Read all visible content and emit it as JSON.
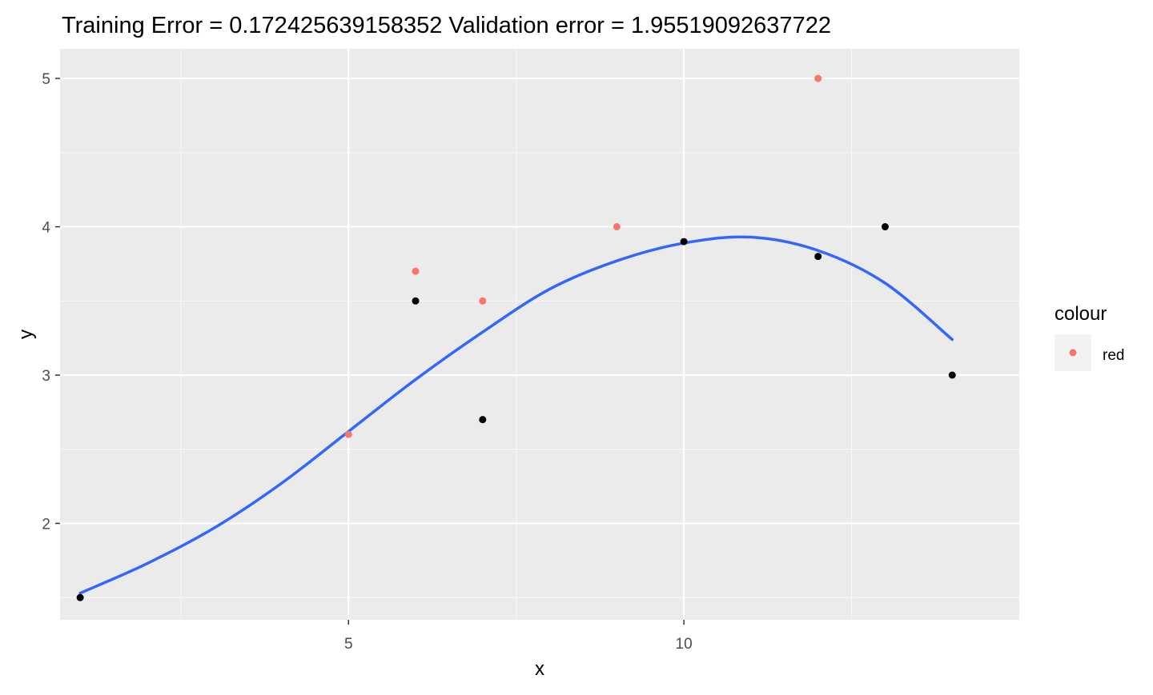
{
  "chart_data": {
    "type": "scatter",
    "title": "Training Error =  0.172425639158352 Validation error =  1.95519092637722",
    "xlabel": "x",
    "ylabel": "y",
    "xlim": [
      0.7,
      15.0
    ],
    "ylim": [
      1.35,
      5.2
    ],
    "x_ticks": [
      5,
      10
    ],
    "x_minor_ticks": [
      2.5,
      7.5,
      12.5
    ],
    "y_ticks": [
      2,
      3,
      4,
      5
    ],
    "y_minor_ticks": [
      1.5,
      2.5,
      3.5,
      4.5
    ],
    "grid": true,
    "legend": {
      "title": "colour",
      "position": "right",
      "entries": [
        {
          "label": "red",
          "color": "#F8766D"
        }
      ]
    },
    "series": [
      {
        "name": "red",
        "kind": "points",
        "color": "#F8766D",
        "x": [
          5,
          6,
          7,
          9,
          12
        ],
        "y": [
          2.6,
          3.7,
          3.5,
          4.0,
          5.0
        ]
      },
      {
        "kind": "points",
        "color": "#000000",
        "x": [
          1,
          6,
          7,
          10,
          12,
          13,
          14
        ],
        "y": [
          1.5,
          3.5,
          2.7,
          3.9,
          3.8,
          4.0,
          3.0
        ]
      },
      {
        "kind": "line",
        "color": "#3366FF",
        "x": [
          1,
          2,
          3,
          4,
          5,
          6,
          7,
          8,
          9,
          10,
          11,
          12,
          13,
          14
        ],
        "y": [
          1.53,
          1.73,
          1.97,
          2.27,
          2.62,
          2.97,
          3.29,
          3.58,
          3.77,
          3.89,
          3.93,
          3.84,
          3.62,
          3.24
        ]
      }
    ]
  },
  "colors": {
    "panel_background": "#EBEBEB",
    "grid_major": "#FFFFFF",
    "axis_text": "#4D4D4D",
    "text": "#000000"
  }
}
